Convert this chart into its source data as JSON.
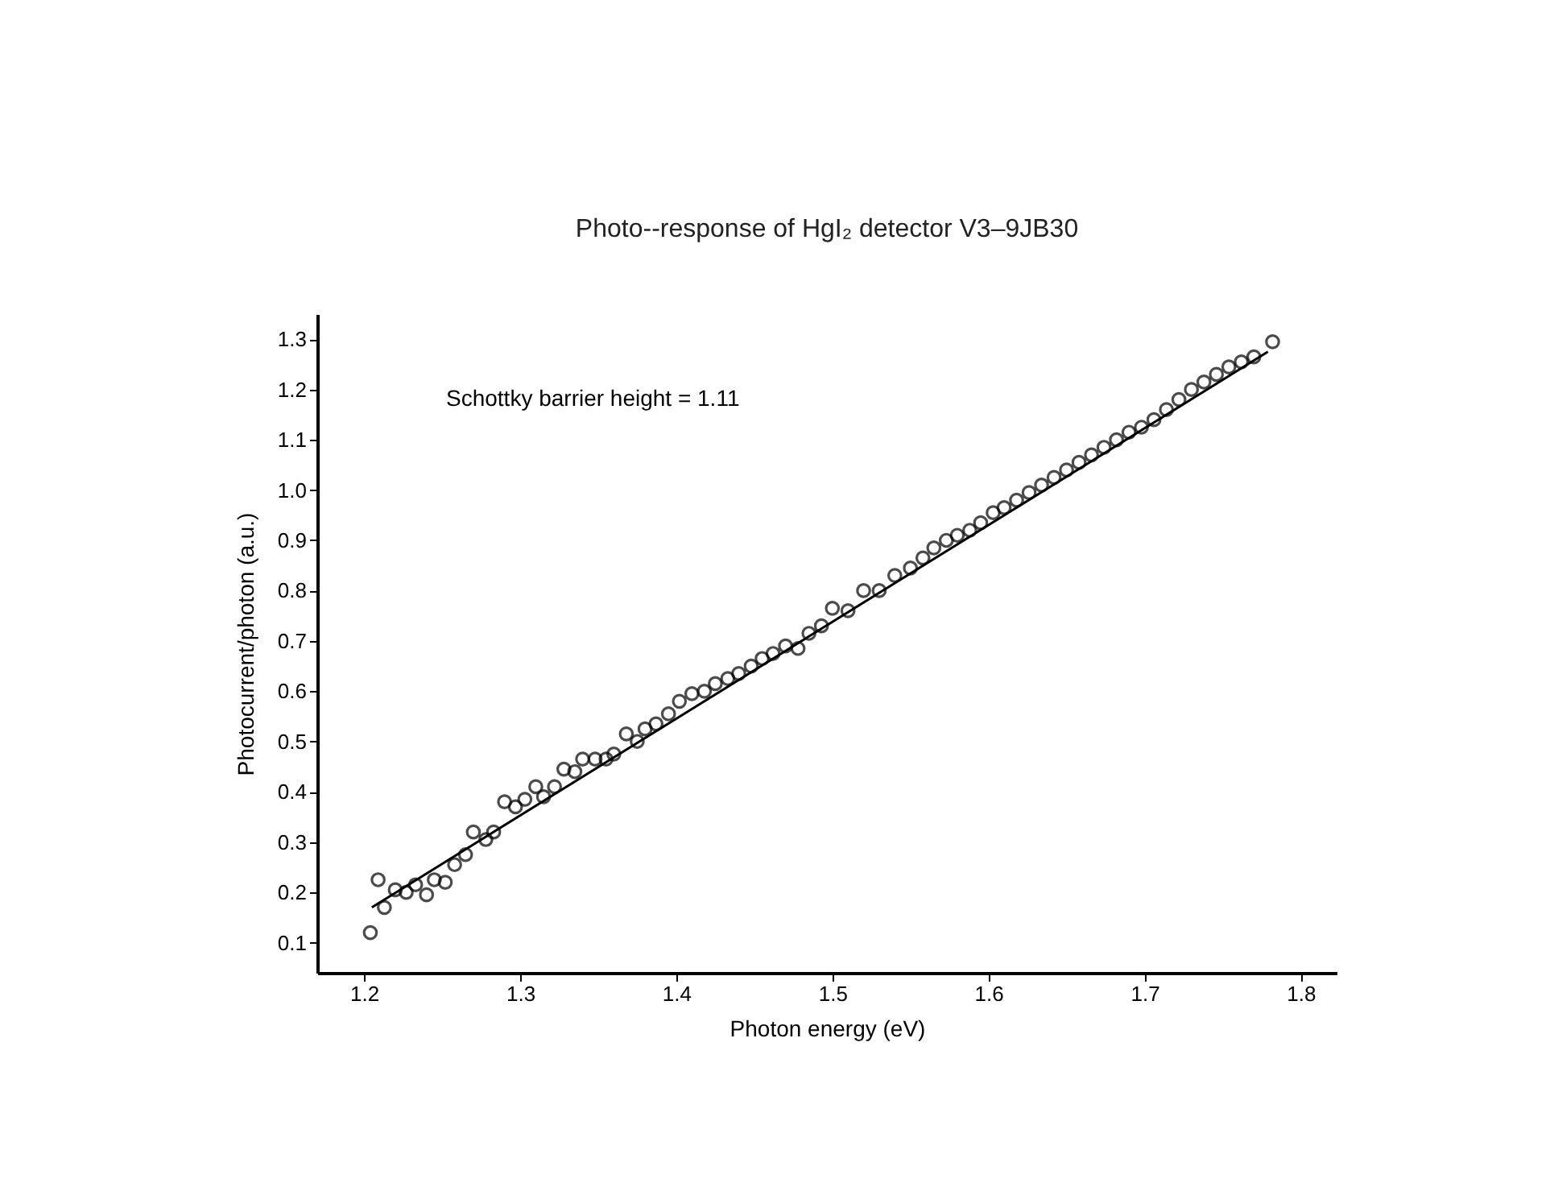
{
  "chart_data": {
    "type": "scatter",
    "title": "Photo--response of HgI₂ detector V3–9JB30",
    "xlabel": "Photon energy (eV)",
    "ylabel": "Photocurrent/photon (a.u.)",
    "annotations": [
      "Schottky barrier height = 1.11"
    ],
    "xlim": [
      1.17,
      1.823
    ],
    "ylim": [
      0.04,
      1.35
    ],
    "xticks": [
      1.2,
      1.3,
      1.4,
      1.5,
      1.6,
      1.7,
      1.8
    ],
    "yticks": [
      0.1,
      0.2,
      0.3,
      0.4,
      0.5,
      0.6,
      0.7,
      0.8,
      0.9,
      {
        "value": 1.0,
        "label": "1.0"
      },
      1.1,
      1.2,
      1.3
    ],
    "grid": false,
    "marker": "circle",
    "series": [
      {
        "type": "scatter",
        "color": "#000000",
        "x": [
          1.204,
          1.209,
          1.213,
          1.22,
          1.227,
          1.233,
          1.24,
          1.245,
          1.252,
          1.258,
          1.265,
          1.27,
          1.278,
          1.283,
          1.29,
          1.297,
          1.303,
          1.31,
          1.315,
          1.322,
          1.328,
          1.335,
          1.34,
          1.348,
          1.355,
          1.36,
          1.368,
          1.375,
          1.38,
          1.387,
          1.395,
          1.402,
          1.41,
          1.418,
          1.425,
          1.433,
          1.44,
          1.448,
          1.455,
          1.462,
          1.47,
          1.478,
          1.485,
          1.493,
          1.5,
          1.51,
          1.52,
          1.53,
          1.54,
          1.55,
          1.558,
          1.565,
          1.573,
          1.58,
          1.588,
          1.595,
          1.603,
          1.61,
          1.618,
          1.626,
          1.634,
          1.642,
          1.65,
          1.658,
          1.666,
          1.674,
          1.682,
          1.69,
          1.698,
          1.706,
          1.714,
          1.722,
          1.73,
          1.738,
          1.746,
          1.754,
          1.762,
          1.77,
          1.782
        ],
        "values": [
          0.12,
          0.225,
          0.17,
          0.205,
          0.2,
          0.215,
          0.195,
          0.225,
          0.22,
          0.255,
          0.275,
          0.32,
          0.305,
          0.32,
          0.38,
          0.37,
          0.385,
          0.41,
          0.39,
          0.41,
          0.445,
          0.44,
          0.465,
          0.465,
          0.465,
          0.475,
          0.515,
          0.5,
          0.525,
          0.535,
          0.555,
          0.58,
          0.595,
          0.6,
          0.615,
          0.625,
          0.635,
          0.65,
          0.665,
          0.675,
          0.69,
          0.685,
          0.715,
          0.73,
          0.765,
          0.76,
          0.8,
          0.8,
          0.83,
          0.845,
          0.865,
          0.885,
          0.9,
          0.91,
          0.92,
          0.935,
          0.955,
          0.965,
          0.98,
          0.995,
          1.01,
          1.025,
          1.04,
          1.055,
          1.07,
          1.085,
          1.1,
          1.115,
          1.125,
          1.14,
          1.16,
          1.18,
          1.2,
          1.215,
          1.23,
          1.245,
          1.255,
          1.265,
          1.295
        ]
      },
      {
        "type": "line",
        "color": "#000000",
        "marker": "none",
        "line_style": "solid",
        "x": [
          1.205,
          1.779
        ],
        "values": [
          0.17,
          1.275
        ]
      }
    ]
  }
}
